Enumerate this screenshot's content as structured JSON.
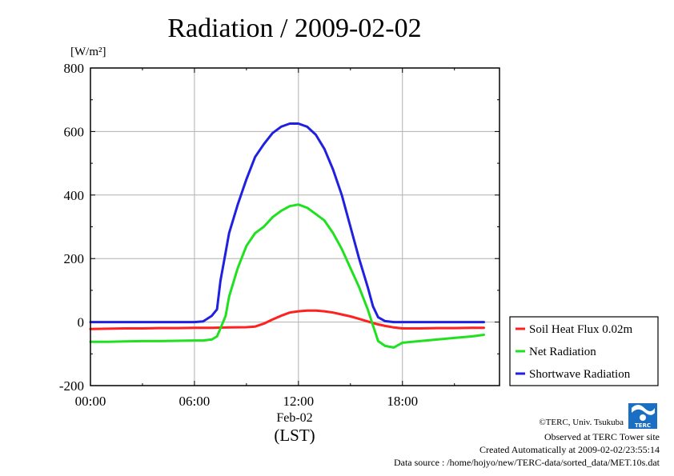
{
  "chart_data": {
    "type": "line",
    "title": "Radiation / 2009-02-02",
    "ylabel": "[W/m²]",
    "xlabel": "Feb-02",
    "xlabel_sub": "(LST)",
    "ylim": [
      -200,
      800
    ],
    "yticks": [
      -200,
      0,
      200,
      400,
      600,
      800
    ],
    "xlim_hours": [
      0,
      23.6
    ],
    "xticks": [
      {
        "hour": 0,
        "label": "00:00"
      },
      {
        "hour": 6,
        "label": "06:00"
      },
      {
        "hour": 12,
        "label": "12:00"
      },
      {
        "hour": 18,
        "label": "18:00"
      }
    ],
    "grid": true,
    "legend_position": "bottom-right outside",
    "series": [
      {
        "name": "Soil Heat Flux 0.02m",
        "color": "#ff2020",
        "x": [
          0,
          1,
          2,
          3,
          4,
          5,
          6,
          7,
          8,
          9,
          9.5,
          10,
          10.5,
          11,
          11.5,
          12,
          12.5,
          13,
          13.5,
          14,
          14.5,
          15,
          15.5,
          16,
          16.5,
          17,
          17.5,
          18,
          19,
          20,
          21,
          22,
          22.7
        ],
        "values": [
          -22,
          -21,
          -20,
          -20,
          -19,
          -19,
          -18,
          -18,
          -17,
          -16,
          -14,
          -5,
          8,
          20,
          30,
          34,
          36,
          36,
          34,
          30,
          24,
          18,
          10,
          2,
          -6,
          -12,
          -17,
          -20,
          -20,
          -19,
          -19,
          -18,
          -18
        ]
      },
      {
        "name": "Net Radiation",
        "color": "#20e020",
        "x": [
          0,
          1,
          2,
          3,
          4,
          5,
          6,
          6.5,
          7,
          7.3,
          7.5,
          7.8,
          8,
          8.5,
          9,
          9.5,
          10,
          10.5,
          11,
          11.5,
          12,
          12.5,
          13,
          13.5,
          14,
          14.5,
          15,
          15.5,
          16,
          16.3,
          16.6,
          17,
          17.5,
          18,
          19,
          20,
          21,
          22,
          22.7
        ],
        "values": [
          -62,
          -62,
          -61,
          -60,
          -60,
          -59,
          -58,
          -58,
          -55,
          -45,
          -20,
          20,
          80,
          170,
          240,
          280,
          300,
          330,
          350,
          365,
          370,
          360,
          340,
          320,
          280,
          230,
          170,
          110,
          40,
          -10,
          -60,
          -75,
          -80,
          -65,
          -60,
          -55,
          -50,
          -45,
          -40
        ]
      },
      {
        "name": "Shortwave Radiation",
        "color": "#2020e0",
        "x": [
          0,
          1,
          2,
          3,
          4,
          5,
          6,
          6.5,
          7,
          7.3,
          7.5,
          7.8,
          8,
          8.5,
          9,
          9.5,
          10,
          10.5,
          11,
          11.5,
          12,
          12.5,
          13,
          13.5,
          14,
          14.5,
          15,
          15.5,
          16,
          16.3,
          16.6,
          17,
          17.5,
          18,
          19,
          20,
          21,
          22,
          22.7
        ],
        "values": [
          0,
          0,
          0,
          0,
          0,
          0,
          0,
          2,
          20,
          40,
          130,
          220,
          280,
          370,
          450,
          520,
          560,
          595,
          615,
          625,
          625,
          615,
          590,
          545,
          480,
          400,
          300,
          200,
          110,
          50,
          15,
          3,
          0,
          0,
          0,
          0,
          0,
          0,
          0
        ]
      }
    ]
  },
  "footer": {
    "copyright": "©TERC, Univ. Tsukuba",
    "observed": "Observed at TERC Tower site",
    "created": "Created Automatically at 2009-02-02/23:55:14",
    "source": "Data source : /home/hojyo/new/TERC-data/sorted_data/MET.10s.dat",
    "logo_text": "TERC"
  },
  "colors": {
    "logo_blue": "#1a6fc4",
    "grid": "#b0b0b0"
  }
}
